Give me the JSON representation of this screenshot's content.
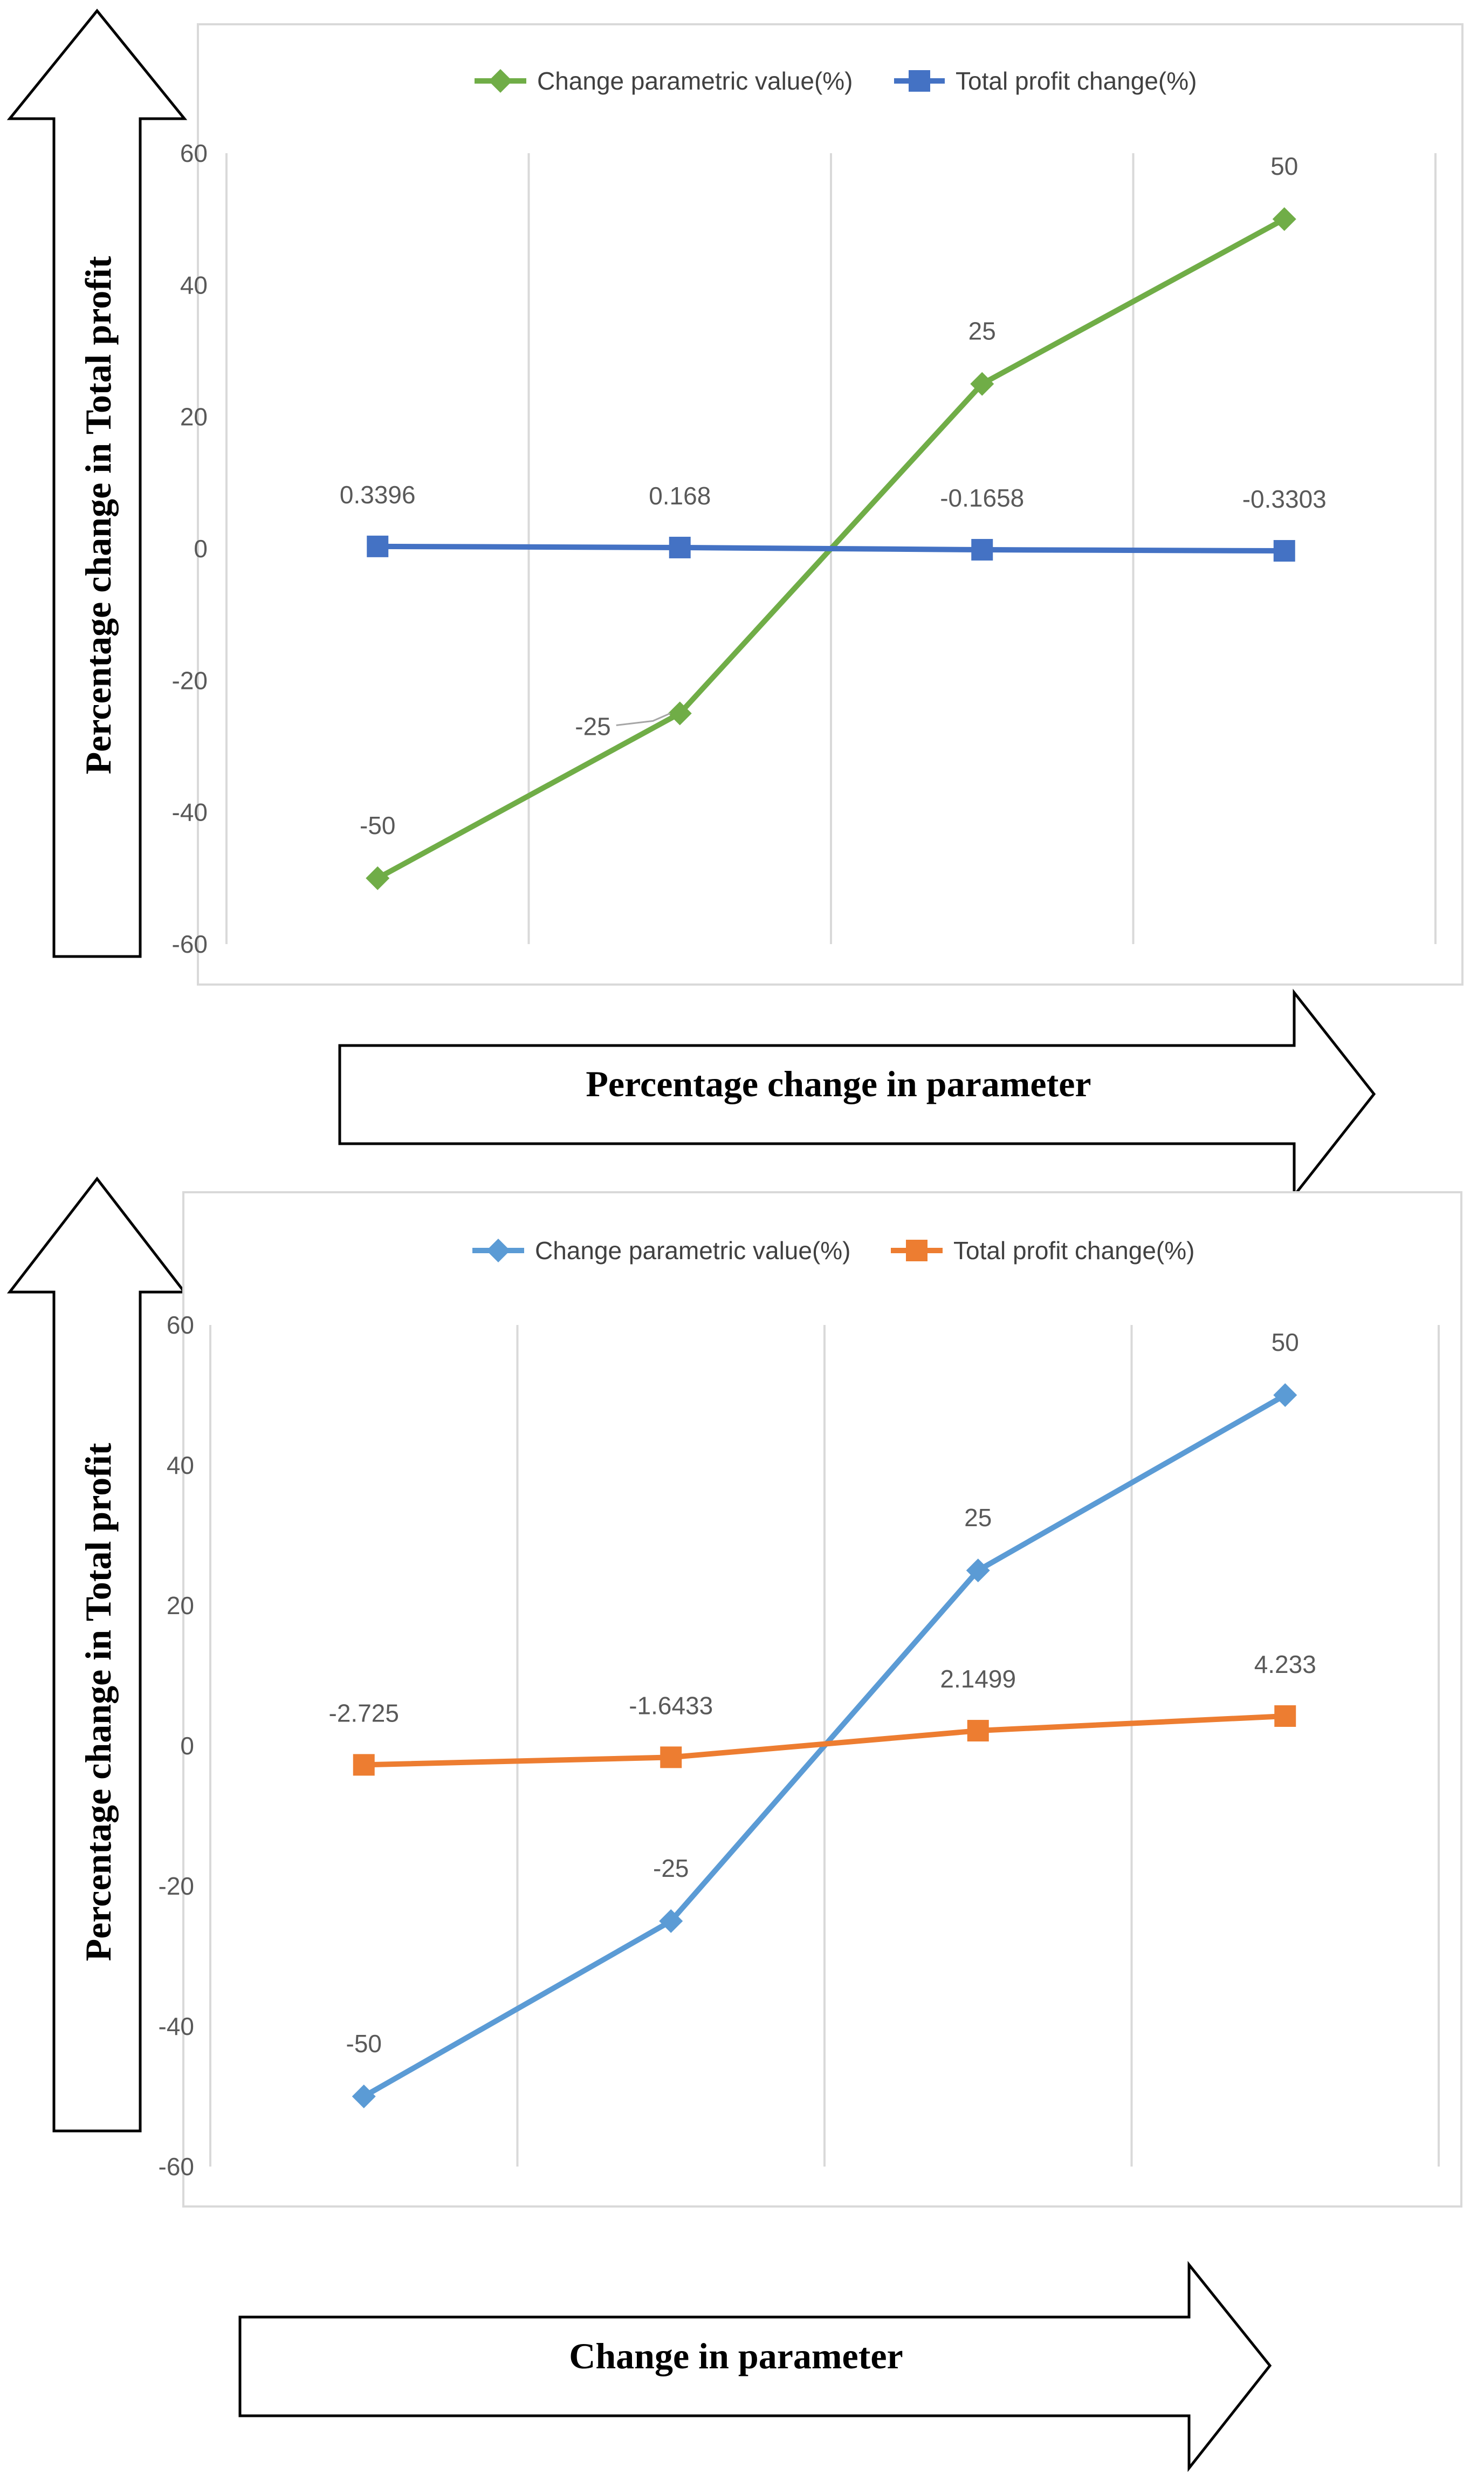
{
  "charts": [
    {
      "y_arrow_label": "Percentage change in  Total profit",
      "x_arrow_label": "Percentage change in parameter",
      "chart_data": {
        "type": "line",
        "categories": [
          "",
          "",
          "",
          ""
        ],
        "ylim": [
          -60,
          60
        ],
        "yticks": [
          -60,
          -40,
          -20,
          0,
          20,
          40,
          60
        ],
        "series": [
          {
            "name": "Change parametric value(%)",
            "color": "#70ad47",
            "marker": "diamond",
            "values": [
              -50,
              -25,
              25,
              50
            ],
            "labels": [
              "-50",
              "-25",
              "25",
              "50"
            ]
          },
          {
            "name": "Total profit change(%)",
            "color": "#4472c4",
            "marker": "square",
            "values": [
              0.3396,
              0.168,
              -0.1658,
              -0.3303
            ],
            "labels": [
              "0.3396",
              "0.168",
              "-0.1658",
              "-0.3303"
            ]
          }
        ]
      }
    },
    {
      "y_arrow_label": "Percentage change in  Total profit",
      "x_arrow_label": "Change in parameter",
      "chart_data": {
        "type": "line",
        "categories": [
          "",
          "",
          "",
          ""
        ],
        "ylim": [
          -60,
          60
        ],
        "yticks": [
          -60,
          -40,
          -20,
          0,
          20,
          40,
          60
        ],
        "series": [
          {
            "name": "Change parametric value(%)",
            "color": "#5b9bd5",
            "marker": "diamond",
            "values": [
              -50,
              -25,
              25,
              50
            ],
            "labels": [
              "-50",
              "-25",
              "25",
              "50"
            ]
          },
          {
            "name": "Total profit change(%)",
            "color": "#ed7d31",
            "marker": "square",
            "values": [
              -2.725,
              -1.6433,
              2.1499,
              4.233
            ],
            "labels": [
              "-2.725",
              "-1.6433",
              "2.1499",
              "4.233"
            ]
          }
        ]
      }
    }
  ]
}
